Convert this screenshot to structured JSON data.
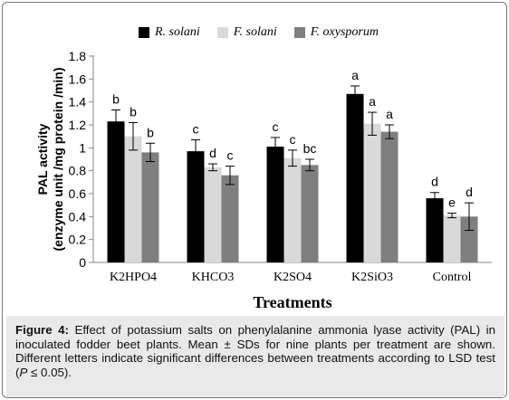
{
  "chart_data": {
    "type": "bar",
    "ylabel_line1": "PAL activity",
    "ylabel_line2": "(enzyme unit /mg protein /min)",
    "xlabel": "Treatments",
    "ylim": [
      0,
      1.8
    ],
    "yticks": [
      "0",
      "0.2",
      "0.4",
      "0.6",
      "0.8",
      "1",
      "1.2",
      "1.4",
      "1.6",
      "1.8"
    ],
    "grid": false,
    "legend_position": "top",
    "categories": [
      "K2HPO4",
      "KHCO3",
      "K2SO4",
      "K2SiO3",
      "Control"
    ],
    "series": [
      {
        "name": "R. solani",
        "color": "#000000",
        "values": [
          1.23,
          0.97,
          1.01,
          1.47,
          0.56
        ],
        "errors": [
          0.1,
          0.1,
          0.08,
          0.07,
          0.05
        ],
        "letters": [
          "b",
          "c",
          "c",
          "a",
          "d"
        ]
      },
      {
        "name": "F. solani",
        "color": "#d9d9d9",
        "values": [
          1.1,
          0.83,
          0.91,
          1.21,
          0.41
        ],
        "errors": [
          0.12,
          0.03,
          0.07,
          0.1,
          0.02
        ],
        "letters": [
          "b",
          "d",
          "c",
          "a",
          "e"
        ]
      },
      {
        "name": "F. oxysporum",
        "color": "#7f7f7f",
        "values": [
          0.96,
          0.76,
          0.85,
          1.14,
          0.4
        ],
        "errors": [
          0.08,
          0.08,
          0.05,
          0.06,
          0.12
        ],
        "letters": [
          "b",
          "c",
          "bc",
          "a",
          "d"
        ]
      }
    ]
  },
  "caption": {
    "label": "Figure 4:",
    "text": " Effect of potassium salts on phenylalanine ammonia lyase activity (PAL) in inoculated fodder beet plants. Mean ± SDs for nine plants per treatment are shown. Different letters indicate significant differences between treatments according to LSD test (",
    "p_symbol": "P",
    "p_rest": " ≤ 0.05)."
  }
}
